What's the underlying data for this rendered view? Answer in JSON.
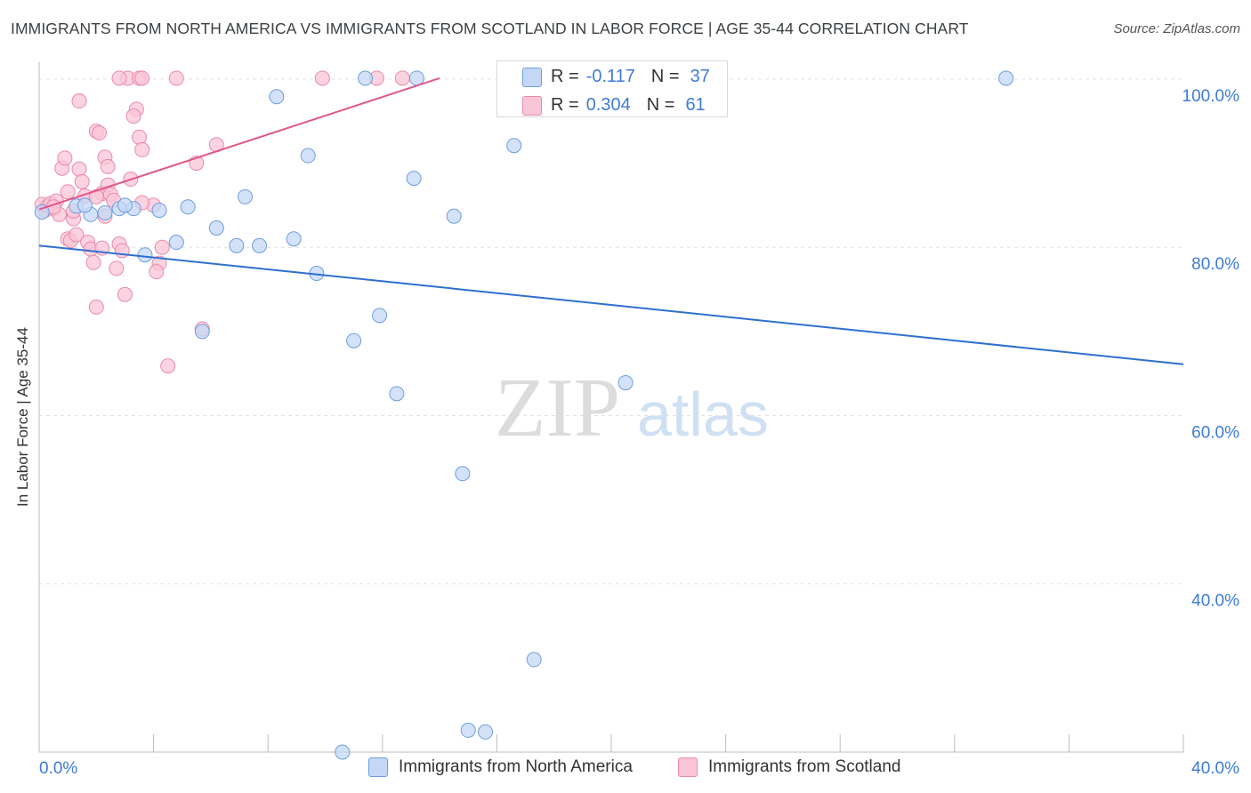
{
  "header": {
    "title": "IMMIGRANTS FROM NORTH AMERICA VS IMMIGRANTS FROM SCOTLAND IN LABOR FORCE | AGE 35-44 CORRELATION CHART",
    "source": "Source: ZipAtlas.com"
  },
  "watermark": {
    "zip": "ZIP",
    "atlas": "atlas"
  },
  "legend": {
    "rows": [
      {
        "r_label": "R =",
        "r_value": "-0.117",
        "n_label": "N =",
        "n_value": "37"
      },
      {
        "r_label": "R =",
        "r_value": "0.304",
        "n_label": "N =",
        "n_value": "61"
      }
    ]
  },
  "colors": {
    "blue_fill": "#c4d8f5",
    "blue_stroke": "#6e9de0",
    "blue_line": "#2f6fcf",
    "pink_fill": "#f9c6d6",
    "pink_stroke": "#e98aa9",
    "pink_line": "#e0578b",
    "tick_label": "#3e7bd6",
    "grid": "#e2e2e2"
  },
  "chart_data": {
    "type": "scatter",
    "title": "IMMIGRANTS FROM NORTH AMERICA VS IMMIGRANTS FROM SCOTLAND IN LABOR FORCE | AGE 35-44 CORRELATION CHART",
    "xlabel": "",
    "ylabel": "In Labor Force | Age 35-44",
    "xlim": [
      0,
      40
    ],
    "ylim": [
      20,
      102
    ],
    "x_tick_labels": [
      "0.0%",
      "40.0%"
    ],
    "y_ticks": [
      40,
      60,
      80,
      100
    ],
    "y_tick_labels": [
      "40.0%",
      "60.0%",
      "80.0%",
      "100.0%"
    ],
    "grid": true,
    "legend_position": "top-center",
    "series": [
      {
        "name": "Immigrants from North America",
        "R": -0.117,
        "N": 37,
        "trend": {
          "x": [
            0.0,
            40.0
          ],
          "y": [
            80.2,
            66.1
          ]
        },
        "points": [
          [
            0.1,
            84.2
          ],
          [
            1.3,
            84.9
          ],
          [
            1.8,
            83.9
          ],
          [
            2.3,
            84.1
          ],
          [
            2.8,
            84.6
          ],
          [
            3.3,
            84.6
          ],
          [
            3.7,
            79.1
          ],
          [
            4.2,
            84.4
          ],
          [
            4.8,
            80.6
          ],
          [
            5.2,
            84.8
          ],
          [
            6.2,
            82.3
          ],
          [
            6.9,
            80.2
          ],
          [
            7.2,
            86.0
          ],
          [
            7.7,
            80.2
          ],
          [
            8.3,
            97.9
          ],
          [
            8.9,
            81.0
          ],
          [
            9.4,
            90.9
          ],
          [
            9.7,
            76.9
          ],
          [
            11.0,
            68.9
          ],
          [
            11.4,
            100.1
          ],
          [
            11.9,
            71.9
          ],
          [
            12.5,
            62.6
          ],
          [
            13.2,
            100.1
          ],
          [
            13.1,
            88.2
          ],
          [
            14.5,
            83.7
          ],
          [
            14.8,
            53.1
          ],
          [
            15.0,
            22.6
          ],
          [
            15.6,
            22.4
          ],
          [
            16.6,
            92.1
          ],
          [
            17.3,
            31.0
          ],
          [
            18.4,
            100.1
          ],
          [
            20.5,
            63.9
          ],
          [
            33.8,
            100.1
          ],
          [
            10.6,
            20.0
          ],
          [
            1.6,
            85.0
          ],
          [
            5.7,
            70.0
          ],
          [
            3.0,
            85.0
          ]
        ]
      },
      {
        "name": "Immigrants from Scotland",
        "R": 0.304,
        "N": 61,
        "trend": {
          "x": [
            0.0,
            14.0
          ],
          "y": [
            84.5,
            100.1
          ]
        },
        "points": [
          [
            0.1,
            85.1
          ],
          [
            0.2,
            84.4
          ],
          [
            0.3,
            84.9
          ],
          [
            0.4,
            85.2
          ],
          [
            0.5,
            84.6
          ],
          [
            0.6,
            85.5
          ],
          [
            0.7,
            83.9
          ],
          [
            0.8,
            89.4
          ],
          [
            0.9,
            90.6
          ],
          [
            1.0,
            86.6
          ],
          [
            1.0,
            81.0
          ],
          [
            1.1,
            80.8
          ],
          [
            1.2,
            83.4
          ],
          [
            1.3,
            81.5
          ],
          [
            1.4,
            89.3
          ],
          [
            1.5,
            87.8
          ],
          [
            1.6,
            86.1
          ],
          [
            1.7,
            80.6
          ],
          [
            1.8,
            79.8
          ],
          [
            1.9,
            78.2
          ],
          [
            2.0,
            72.9
          ],
          [
            2.0,
            93.8
          ],
          [
            1.4,
            97.4
          ],
          [
            2.1,
            93.6
          ],
          [
            2.2,
            86.4
          ],
          [
            2.3,
            83.7
          ],
          [
            2.4,
            87.4
          ],
          [
            2.5,
            86.3
          ],
          [
            2.6,
            85.6
          ],
          [
            2.7,
            77.5
          ],
          [
            2.8,
            80.4
          ],
          [
            2.9,
            79.6
          ],
          [
            2.0,
            86.0
          ],
          [
            3.2,
            88.1
          ],
          [
            2.3,
            90.7
          ],
          [
            2.4,
            89.6
          ],
          [
            2.2,
            79.9
          ],
          [
            3.4,
            96.4
          ],
          [
            3.3,
            95.6
          ],
          [
            3.5,
            93.1
          ],
          [
            3.6,
            91.6
          ],
          [
            3.0,
            74.4
          ],
          [
            3.1,
            100.1
          ],
          [
            2.8,
            100.1
          ],
          [
            3.5,
            100.1
          ],
          [
            4.0,
            85.0
          ],
          [
            4.2,
            78.1
          ],
          [
            4.1,
            77.1
          ],
          [
            4.3,
            80.0
          ],
          [
            3.6,
            85.3
          ],
          [
            4.5,
            65.9
          ],
          [
            4.8,
            100.1
          ],
          [
            3.6,
            100.1
          ],
          [
            5.5,
            90.0
          ],
          [
            5.7,
            70.3
          ],
          [
            6.2,
            92.2
          ],
          [
            9.9,
            100.1
          ],
          [
            11.8,
            100.1
          ],
          [
            12.7,
            100.1
          ],
          [
            1.2,
            84.3
          ],
          [
            0.5,
            84.8
          ]
        ]
      }
    ]
  },
  "bottom_legend": [
    "Immigrants from North America",
    "Immigrants from Scotland"
  ]
}
